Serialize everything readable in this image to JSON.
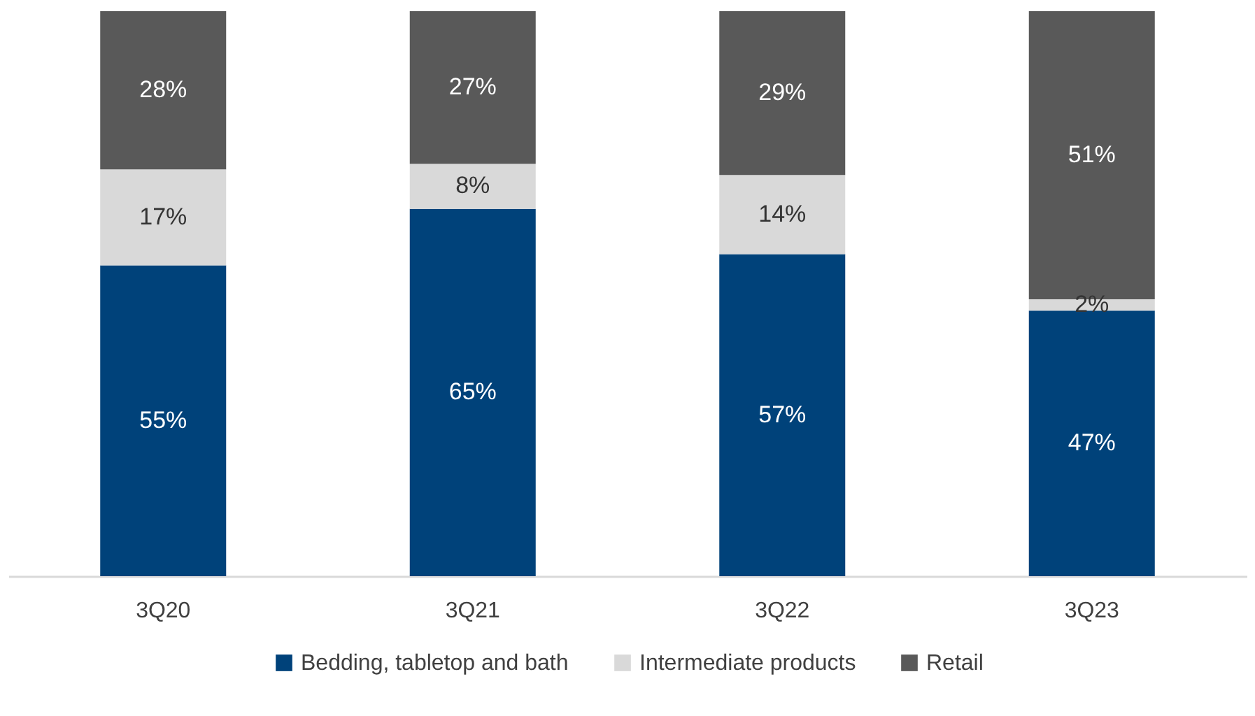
{
  "chart_data": {
    "type": "bar",
    "stacked": true,
    "categories": [
      "3Q20",
      "3Q21",
      "3Q22",
      "3Q23"
    ],
    "series": [
      {
        "name": "Bedding, tabletop and bath",
        "color": "#00427a",
        "values": [
          55,
          65,
          57,
          47
        ],
        "value_labels": [
          "55%",
          "65%",
          "57%",
          "47%"
        ]
      },
      {
        "name": "Intermediate products",
        "color": "#d9d9d9",
        "values": [
          17,
          8,
          14,
          2
        ],
        "value_labels": [
          "17%",
          "8%",
          "14%",
          "2%"
        ]
      },
      {
        "name": "Retail",
        "color": "#595959",
        "values": [
          28,
          27,
          29,
          51
        ],
        "value_labels": [
          "28%",
          "27%",
          "29%",
          "51%"
        ]
      }
    ],
    "legend": "bottom",
    "grid": false
  }
}
